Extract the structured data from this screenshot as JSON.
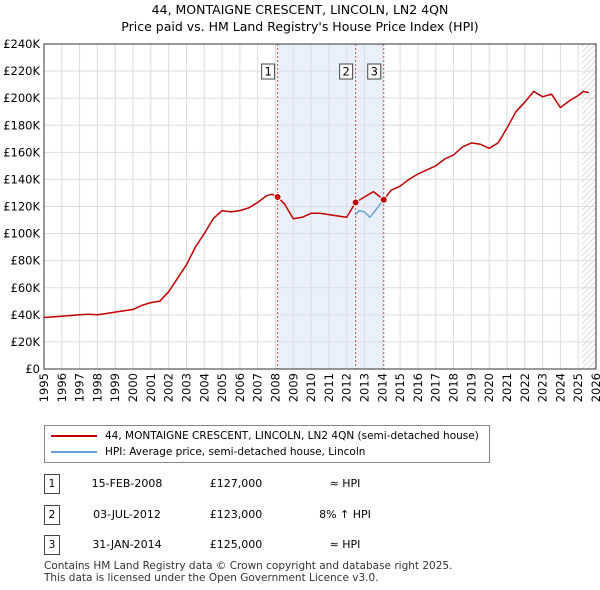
{
  "chart_data": {
    "type": "line",
    "title": "44, MONTAIGNE CRESCENT, LINCOLN, LN2 4QN",
    "subtitle": "Price paid vs. HM Land Registry's House Price Index (HPI)",
    "xlabel": "",
    "ylabel": "",
    "xlim": [
      1995,
      2026
    ],
    "ylim": [
      0,
      240000
    ],
    "grid": true,
    "x_ticks": [
      "1995",
      "1996",
      "1997",
      "1998",
      "1999",
      "2000",
      "2001",
      "2002",
      "2003",
      "2004",
      "2005",
      "2006",
      "2007",
      "2008",
      "2009",
      "2010",
      "2011",
      "2012",
      "2013",
      "2014",
      "2015",
      "2016",
      "2017",
      "2018",
      "2019",
      "2020",
      "2021",
      "2022",
      "2023",
      "2024",
      "2025",
      "2026"
    ],
    "y_ticks": [
      {
        "value": 0,
        "label": "£0"
      },
      {
        "value": 20000,
        "label": "£20K"
      },
      {
        "value": 40000,
        "label": "£40K"
      },
      {
        "value": 60000,
        "label": "£60K"
      },
      {
        "value": 80000,
        "label": "£80K"
      },
      {
        "value": 100000,
        "label": "£100K"
      },
      {
        "value": 120000,
        "label": "£120K"
      },
      {
        "value": 140000,
        "label": "£140K"
      },
      {
        "value": 160000,
        "label": "£160K"
      },
      {
        "value": 180000,
        "label": "£180K"
      },
      {
        "value": 200000,
        "label": "£200K"
      },
      {
        "value": 220000,
        "label": "£220K"
      },
      {
        "value": 240000,
        "label": "£240K"
      }
    ],
    "shaded_ranges": [
      [
        2008.12,
        2014.08
      ]
    ],
    "hatched_from": 2025.2,
    "hpi_series": {
      "name": "HPI: Average price, semi-detached house, Lincoln",
      "color": "#6a9fd8",
      "segment": [
        [
          2012.5,
          114000
        ],
        [
          2012.7,
          117000
        ],
        [
          2013.0,
          116000
        ],
        [
          2013.3,
          112000
        ],
        [
          2013.6,
          117000
        ],
        [
          2013.9,
          122000
        ],
        [
          2014.08,
          125000
        ]
      ]
    },
    "price_series": {
      "name": "44, MONTAIGNE CRESCENT, LINCOLN, LN2 4QN (semi-detached house)",
      "color": "#c00000",
      "points": [
        [
          1995.0,
          38000
        ],
        [
          1995.5,
          38500
        ],
        [
          1996.0,
          39000
        ],
        [
          1996.5,
          39500
        ],
        [
          1997.0,
          40000
        ],
        [
          1997.5,
          40500
        ],
        [
          1998.0,
          40000
        ],
        [
          1998.5,
          41000
        ],
        [
          1999.0,
          42000
        ],
        [
          1999.5,
          43000
        ],
        [
          2000.0,
          44000
        ],
        [
          2000.5,
          47000
        ],
        [
          2001.0,
          49000
        ],
        [
          2001.5,
          50000
        ],
        [
          2002.0,
          57000
        ],
        [
          2002.5,
          67000
        ],
        [
          2003.0,
          77000
        ],
        [
          2003.5,
          90000
        ],
        [
          2004.0,
          100000
        ],
        [
          2004.5,
          111000
        ],
        [
          2005.0,
          117000
        ],
        [
          2005.5,
          116000
        ],
        [
          2006.0,
          117000
        ],
        [
          2006.5,
          119000
        ],
        [
          2007.0,
          123000
        ],
        [
          2007.5,
          128000
        ],
        [
          2007.8,
          129000
        ],
        [
          2008.12,
          127000
        ],
        [
          2008.5,
          122000
        ],
        [
          2009.0,
          111000
        ],
        [
          2009.5,
          112000
        ],
        [
          2010.0,
          115000
        ],
        [
          2010.5,
          115000
        ],
        [
          2011.0,
          114000
        ],
        [
          2011.5,
          113000
        ],
        [
          2012.0,
          112000
        ],
        [
          2012.5,
          123000
        ],
        [
          2013.0,
          127000
        ],
        [
          2013.5,
          131000
        ],
        [
          2014.08,
          125000
        ],
        [
          2014.5,
          132000
        ],
        [
          2015.0,
          135000
        ],
        [
          2015.5,
          140000
        ],
        [
          2016.0,
          144000
        ],
        [
          2016.5,
          147000
        ],
        [
          2017.0,
          150000
        ],
        [
          2017.5,
          155000
        ],
        [
          2018.0,
          158000
        ],
        [
          2018.5,
          164000
        ],
        [
          2019.0,
          167000
        ],
        [
          2019.5,
          166000
        ],
        [
          2020.0,
          163000
        ],
        [
          2020.5,
          167000
        ],
        [
          2021.0,
          178000
        ],
        [
          2021.5,
          190000
        ],
        [
          2022.0,
          197000
        ],
        [
          2022.5,
          205000
        ],
        [
          2023.0,
          201000
        ],
        [
          2023.5,
          203000
        ],
        [
          2024.0,
          193000
        ],
        [
          2024.5,
          198000
        ],
        [
          2025.0,
          202000
        ],
        [
          2025.3,
          205000
        ],
        [
          2025.6,
          204000
        ]
      ]
    },
    "sales": [
      {
        "marker": "1",
        "x": 2008.12,
        "price": 127000
      },
      {
        "marker": "2",
        "x": 2012.5,
        "price": 123000
      },
      {
        "marker": "3",
        "x": 2014.08,
        "price": 125000
      }
    ]
  },
  "legend": {
    "property_label": "44, MONTAIGNE CRESCENT, LINCOLN, LN2 4QN (semi-detached house)",
    "hpi_label": "HPI: Average price, semi-detached house, Lincoln"
  },
  "transactions": [
    {
      "marker": "1",
      "date": "15-FEB-2008",
      "price": "£127,000",
      "hpi": "≈ HPI"
    },
    {
      "marker": "2",
      "date": "03-JUL-2012",
      "price": "£123,000",
      "hpi": "8% ↑ HPI"
    },
    {
      "marker": "3",
      "date": "31-JAN-2014",
      "price": "£125,000",
      "hpi": "≈ HPI"
    }
  ],
  "footer": {
    "line1": "Contains HM Land Registry data © Crown copyright and database right 2025.",
    "line2": "This data is licensed under the Open Government Licence v3.0."
  },
  "colors": {
    "price": "#c00000",
    "hpi": "#6a9fd8",
    "shade": "#eaf0fb"
  }
}
